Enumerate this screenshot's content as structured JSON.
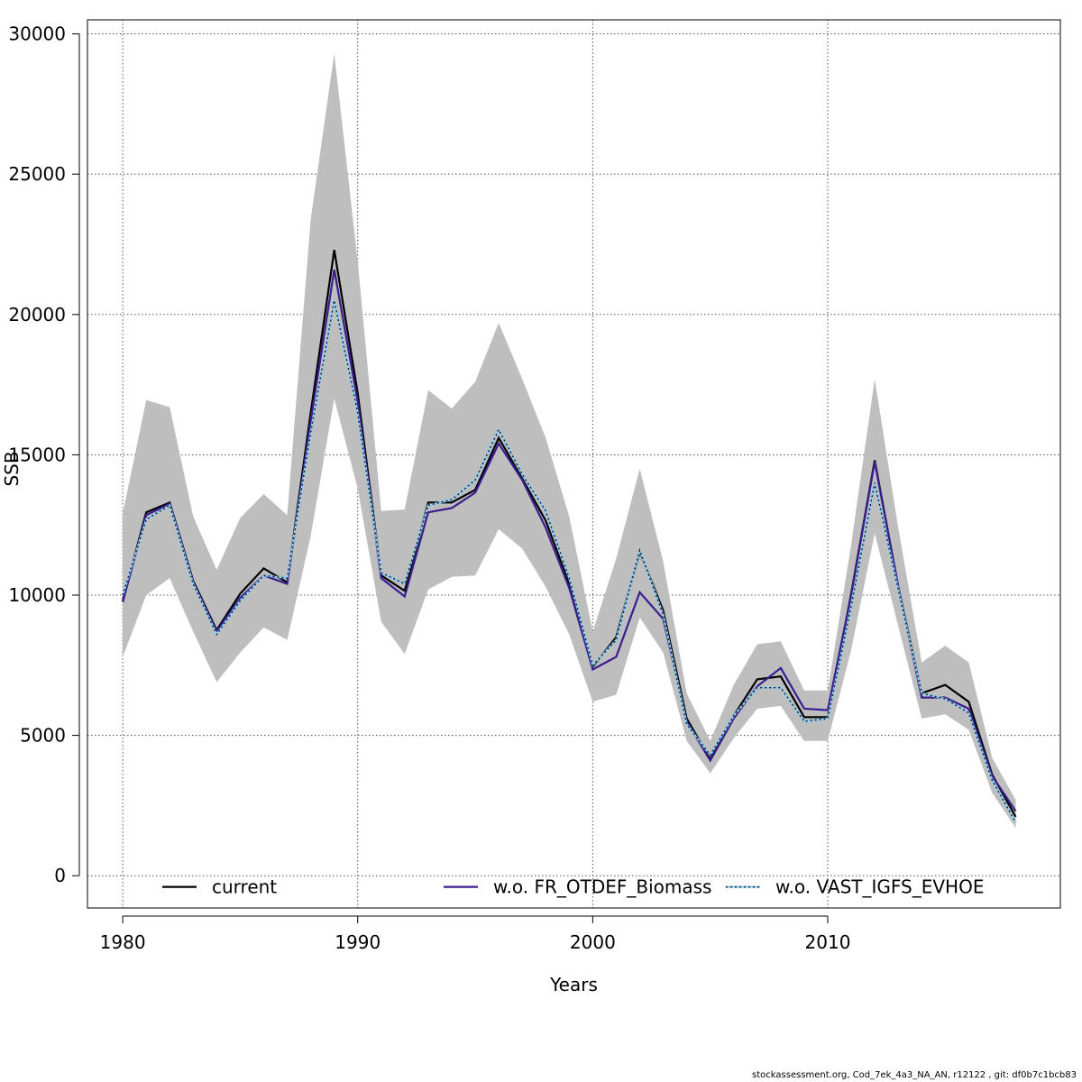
{
  "chart_data": {
    "type": "line",
    "xlabel": "Years",
    "ylabel": "SSB",
    "xlim": [
      1978.5,
      2019.9
    ],
    "ylim": [
      -1150,
      30500
    ],
    "x_ticks": [
      1980,
      1990,
      2000,
      2010
    ],
    "y_ticks": [
      0,
      5000,
      10000,
      15000,
      20000,
      25000,
      30000
    ],
    "grid": true,
    "legend_position": "bottom",
    "x": [
      1980,
      1981,
      1982,
      1983,
      1984,
      1985,
      1986,
      1987,
      1988,
      1989,
      1990,
      1991,
      1992,
      1993,
      1994,
      1995,
      1996,
      1997,
      1998,
      1999,
      2000,
      2001,
      2002,
      2003,
      2004,
      2005,
      2006,
      2007,
      2008,
      2009,
      2010,
      2011,
      2012,
      2013,
      2014,
      2015,
      2016,
      2017,
      2018
    ],
    "band": {
      "color": "#bebebe",
      "upper": [
        12900,
        16950,
        16700,
        12800,
        10900,
        12750,
        13600,
        12850,
        23400,
        29300,
        21900,
        13000,
        13050,
        17300,
        16650,
        17600,
        19700,
        17700,
        15600,
        12800,
        8700,
        11300,
        14500,
        11200,
        6500,
        4800,
        6800,
        8250,
        8350,
        6600,
        6600,
        11800,
        17700,
        12400,
        7600,
        8200,
        7600,
        4200,
        2700
      ],
      "lower": [
        7800,
        10000,
        10600,
        8700,
        6900,
        7950,
        8850,
        8400,
        12100,
        17000,
        13800,
        9050,
        7900,
        10200,
        10650,
        10700,
        12350,
        11650,
        10300,
        8600,
        6200,
        6450,
        9200,
        7950,
        4800,
        3650,
        4900,
        5950,
        6050,
        4800,
        4800,
        8050,
        12200,
        8900,
        5600,
        5750,
        5200,
        2950,
        1700
      ]
    },
    "series": [
      {
        "name": "current",
        "color": "#000000",
        "dash": "solid",
        "values": [
          9800,
          12950,
          13300,
          10500,
          8750,
          10050,
          10950,
          10450,
          16500,
          22300,
          17200,
          10700,
          10150,
          13300,
          13300,
          13750,
          15600,
          14150,
          12650,
          10400,
          7450,
          8500,
          11550,
          9450,
          5600,
          4150,
          5700,
          7000,
          7100,
          5650,
          5650,
          10050,
          14800,
          10300,
          6500,
          6800,
          6200,
          3600,
          2100
        ]
      },
      {
        "name": "w.o. FR_OTDEF_Biomass",
        "color": "#3b1d8f",
        "dash": "solid",
        "values": [
          9750,
          12850,
          13250,
          10450,
          8700,
          9900,
          10700,
          10400,
          16200,
          21600,
          16900,
          10600,
          9950,
          12950,
          13100,
          13650,
          15400,
          14100,
          12400,
          10250,
          7350,
          7800,
          10100,
          9150,
          5500,
          4100,
          5600,
          6750,
          7400,
          5950,
          5900,
          10000,
          14750,
          10300,
          6350,
          6350,
          5950,
          3550,
          2300
        ]
      },
      {
        "name": "w.o. VAST_IGFS_EVHOE",
        "color": "#87cefa",
        "dash": "dotted",
        "values": [
          10000,
          12700,
          13200,
          10400,
          8600,
          9800,
          10700,
          10600,
          15800,
          20500,
          16500,
          10800,
          10400,
          13200,
          13400,
          14100,
          15900,
          14300,
          13000,
          10600,
          7500,
          8400,
          11600,
          9300,
          5400,
          4300,
          5700,
          6700,
          6700,
          5500,
          5600,
          9600,
          14000,
          10200,
          6500,
          6300,
          5800,
          3400,
          1900
        ]
      }
    ]
  },
  "footer_text": "stockassessment.org, Cod_7ek_4a3_NA_AN, r12122 , git: df0b7c1bcb83"
}
